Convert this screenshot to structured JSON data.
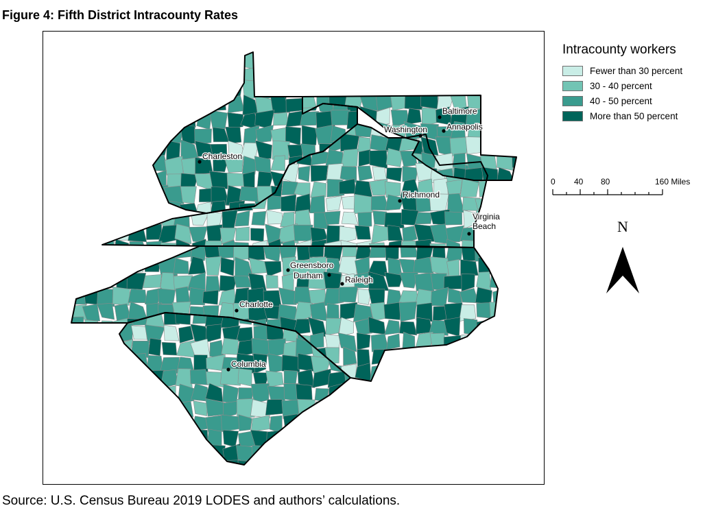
{
  "figure_title": "Figure 4: Fifth District Intracounty Rates",
  "source_note": "Source: U.S. Census Bureau 2019 LODES and authors’ calculations.",
  "legend": {
    "title": "Intracounty workers",
    "items": [
      {
        "label": "Fewer than 30 percent",
        "color": "#c9ede6"
      },
      {
        "label": "30 - 40 percent",
        "color": "#72c4b4"
      },
      {
        "label": "40 - 50 percent",
        "color": "#3a9b8e"
      },
      {
        "label": "More than 50 percent",
        "color": "#00645a"
      }
    ]
  },
  "scale_bar": {
    "ticks": [
      "0",
      "40",
      "80",
      "160 Miles"
    ]
  },
  "north_arrow": {
    "label": "N"
  },
  "cities": [
    {
      "name": "Baltimore"
    },
    {
      "name": "Washington"
    },
    {
      "name": "Annapolis"
    },
    {
      "name": "Charleston"
    },
    {
      "name": "Richmond"
    },
    {
      "name": "Virginia Beach"
    },
    {
      "name": "Greensboro"
    },
    {
      "name": "Durham"
    },
    {
      "name": "Raleigh"
    },
    {
      "name": "Charlotte"
    },
    {
      "name": "Columbia"
    }
  ]
}
